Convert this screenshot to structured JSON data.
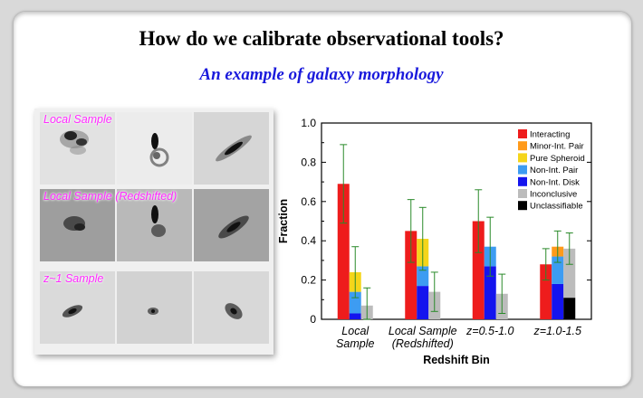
{
  "title": "How do we calibrate observational tools?",
  "subtitle": "An example of galaxy morphology",
  "gallery": {
    "rows": [
      {
        "label": "Local Sample"
      },
      {
        "label": "Local Sample (Redshifted)"
      },
      {
        "label": "z~1 Sample"
      }
    ]
  },
  "chart_data": {
    "type": "bar",
    "xlabel": "Redshift Bin",
    "ylabel": "Fraction",
    "ylim": [
      0,
      1.0
    ],
    "yticks": [
      "0",
      "0.2",
      "0.4",
      "0.6",
      "0.8",
      "1.0"
    ],
    "legend_position": "top-right",
    "categories": [
      [
        "Local",
        "Sample"
      ],
      [
        "Local Sample",
        "(Redshifted)"
      ],
      [
        "z=0.5-1.0"
      ],
      [
        "z=1.0-1.5"
      ]
    ],
    "series": [
      {
        "name": "Interacting",
        "color": "#ee1c1c"
      },
      {
        "name": "Minor-Int. Pair",
        "color": "#ff9a1a"
      },
      {
        "name": "Pure Spheroid",
        "color": "#f5d51a"
      },
      {
        "name": "Non-Int. Pair",
        "color": "#3d9cf2"
      },
      {
        "name": "Non-Int. Disk",
        "color": "#1414ee"
      },
      {
        "name": "Inconclusive",
        "color": "#bcbcbc"
      },
      {
        "name": "Unclassifiable",
        "color": "#000000"
      }
    ],
    "groups": [
      {
        "bars": [
          {
            "total": 0.69,
            "err": [
              0.49,
              0.89
            ],
            "stack": [
              [
                "Interacting",
                0.69
              ]
            ]
          },
          {
            "total": 0.24,
            "err": [
              0.11,
              0.37
            ],
            "stack": [
              [
                "Non-Int. Disk",
                0.03
              ],
              [
                "Non-Int. Pair",
                0.11
              ],
              [
                "Pure Spheroid",
                0.1
              ]
            ]
          },
          {
            "total": 0.07,
            "err": [
              0.0,
              0.16
            ],
            "stack": [
              [
                "Inconclusive",
                0.07
              ]
            ]
          }
        ]
      },
      {
        "bars": [
          {
            "total": 0.45,
            "err": [
              0.29,
              0.61
            ],
            "stack": [
              [
                "Interacting",
                0.45
              ]
            ]
          },
          {
            "total": 0.41,
            "err": [
              0.25,
              0.57
            ],
            "stack": [
              [
                "Non-Int. Disk",
                0.17
              ],
              [
                "Non-Int. Pair",
                0.1
              ],
              [
                "Pure Spheroid",
                0.14
              ]
            ]
          },
          {
            "total": 0.14,
            "err": [
              0.04,
              0.24
            ],
            "stack": [
              [
                "Inconclusive",
                0.14
              ]
            ]
          }
        ]
      },
      {
        "bars": [
          {
            "total": 0.5,
            "err": [
              0.34,
              0.66
            ],
            "stack": [
              [
                "Interacting",
                0.5
              ]
            ]
          },
          {
            "total": 0.37,
            "err": [
              0.22,
              0.52
            ],
            "stack": [
              [
                "Non-Int. Disk",
                0.27
              ],
              [
                "Non-Int. Pair",
                0.1
              ]
            ]
          },
          {
            "total": 0.13,
            "err": [
              0.03,
              0.23
            ],
            "stack": [
              [
                "Inconclusive",
                0.13
              ]
            ]
          }
        ]
      },
      {
        "bars": [
          {
            "total": 0.28,
            "err": [
              0.2,
              0.36
            ],
            "stack": [
              [
                "Interacting",
                0.28
              ]
            ]
          },
          {
            "total": 0.37,
            "err": [
              0.29,
              0.45
            ],
            "stack": [
              [
                "Non-Int. Disk",
                0.18
              ],
              [
                "Non-Int. Pair",
                0.14
              ],
              [
                "Minor-Int. Pair",
                0.05
              ]
            ]
          },
          {
            "total": 0.36,
            "err": [
              0.28,
              0.44
            ],
            "stack": [
              [
                "Unclassifiable",
                0.11
              ],
              [
                "Inconclusive",
                0.25
              ]
            ]
          }
        ]
      }
    ]
  }
}
